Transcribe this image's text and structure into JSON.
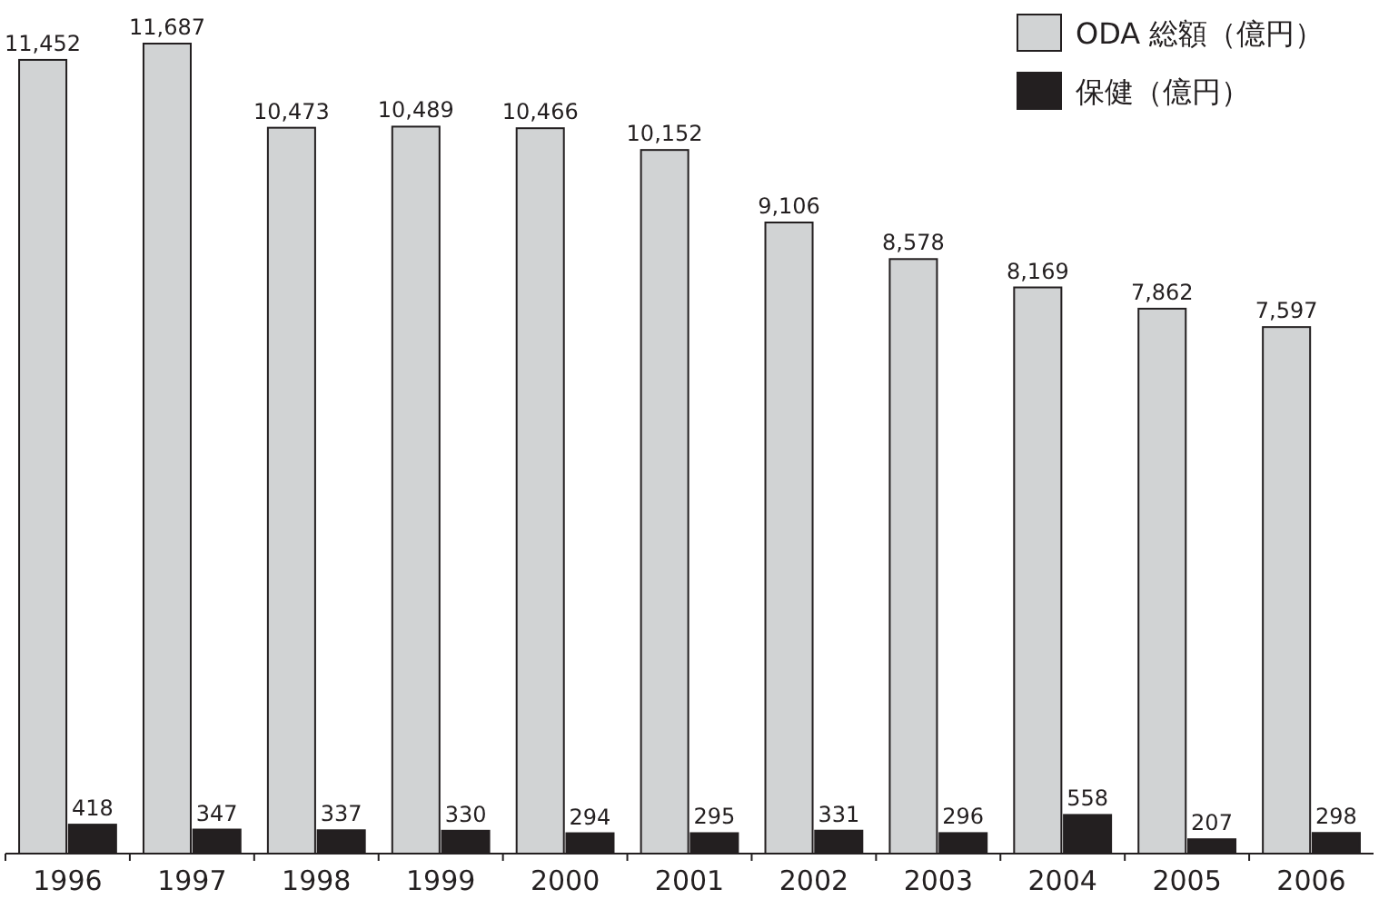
{
  "chart_data": {
    "type": "bar",
    "categories": [
      "1996",
      "1997",
      "1998",
      "1999",
      "2000",
      "2001",
      "2002",
      "2003",
      "2004",
      "2005",
      "2006"
    ],
    "series": [
      {
        "name": "ODA 総額（億円）",
        "color": "#d1d3d4",
        "values": [
          11452,
          11687,
          10473,
          10489,
          10466,
          10152,
          9106,
          8578,
          8169,
          7862,
          7597
        ],
        "value_labels": [
          "11,452",
          "11,687",
          "10,473",
          "10,489",
          "10,466",
          "10,152",
          "9,106",
          "8,578",
          "8,169",
          "7,862",
          "7,597"
        ]
      },
      {
        "name": "保健（億円）",
        "color": "#231f20",
        "values": [
          418,
          347,
          337,
          330,
          294,
          295,
          331,
          296,
          558,
          207,
          298
        ],
        "value_labels": [
          "418",
          "347",
          "337",
          "330",
          "294",
          "295",
          "331",
          "296",
          "558",
          "207",
          "298"
        ]
      }
    ],
    "legend": "top right",
    "grid": false
  }
}
